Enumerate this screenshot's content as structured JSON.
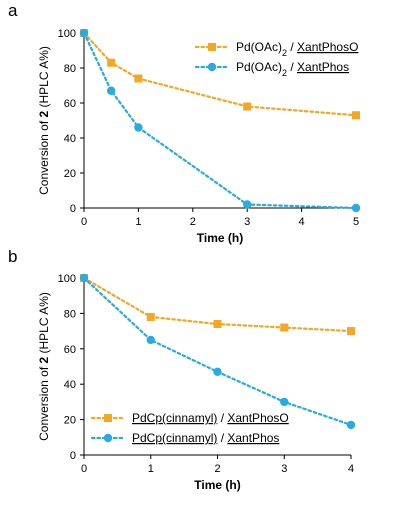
{
  "chart_data": [
    {
      "panel_label": "a",
      "type": "line",
      "xlabel": "Time (h)",
      "ylabel_parts": [
        {
          "text": "Conversion of ",
          "bold": false
        },
        {
          "text": "2",
          "bold": true
        },
        {
          "text": " (HPLC A%)",
          "bold": false
        }
      ],
      "xlim": [
        0,
        5
      ],
      "ylim": [
        0,
        100
      ],
      "x_ticks": [
        0,
        1,
        2,
        3,
        4,
        5
      ],
      "y_ticks": [
        0,
        20,
        40,
        60,
        80,
        100
      ],
      "grid": false,
      "legend_position": "top-right",
      "series": [
        {
          "name_parts": [
            {
              "t": "Pd(OAc)"
            },
            {
              "t": "2",
              "sub": true
            },
            {
              "t": " / "
            },
            {
              "t": "XantPhosO",
              "underline": true
            }
          ],
          "color": "#f5a623",
          "marker": "square",
          "x": [
            0,
            0.5,
            1,
            3,
            5
          ],
          "y": [
            100,
            83,
            74,
            58,
            53
          ]
        },
        {
          "name_parts": [
            {
              "t": "Pd(OAc)"
            },
            {
              "t": "2",
              "sub": true
            },
            {
              "t": " / "
            },
            {
              "t": "XantPhos",
              "underline": true
            }
          ],
          "color": "#29abe2",
          "marker": "circle",
          "x": [
            0,
            0.5,
            1,
            3,
            5
          ],
          "y": [
            100,
            67,
            46,
            2,
            0
          ]
        }
      ]
    },
    {
      "panel_label": "b",
      "type": "line",
      "xlabel": "Time (h)",
      "ylabel_parts": [
        {
          "text": "Conversion of ",
          "bold": false
        },
        {
          "text": "2",
          "bold": true
        },
        {
          "text": " (HPLC A%)",
          "bold": false
        }
      ],
      "xlim": [
        0,
        4
      ],
      "ylim": [
        0,
        100
      ],
      "x_ticks": [
        0,
        1,
        2,
        3,
        4
      ],
      "y_ticks": [
        0,
        20,
        40,
        60,
        80,
        100
      ],
      "grid": false,
      "legend_position": "bottom-left",
      "series": [
        {
          "name_parts": [
            {
              "t": "PdCp(cinnamyl)",
              "underline": true
            },
            {
              "t": " / "
            },
            {
              "t": "XantPhosO",
              "underline": true
            }
          ],
          "color": "#f5a623",
          "marker": "square",
          "x": [
            0,
            1,
            2,
            3,
            4
          ],
          "y": [
            100,
            78,
            74,
            72,
            70
          ]
        },
        {
          "name_parts": [
            {
              "t": "PdCp(cinnamyl)",
              "underline": true
            },
            {
              "t": " / "
            },
            {
              "t": "XantPhos",
              "underline": true
            }
          ],
          "color": "#29abe2",
          "marker": "circle",
          "x": [
            0,
            1,
            2,
            3,
            4
          ],
          "y": [
            100,
            65,
            47,
            30,
            17
          ]
        }
      ]
    }
  ]
}
